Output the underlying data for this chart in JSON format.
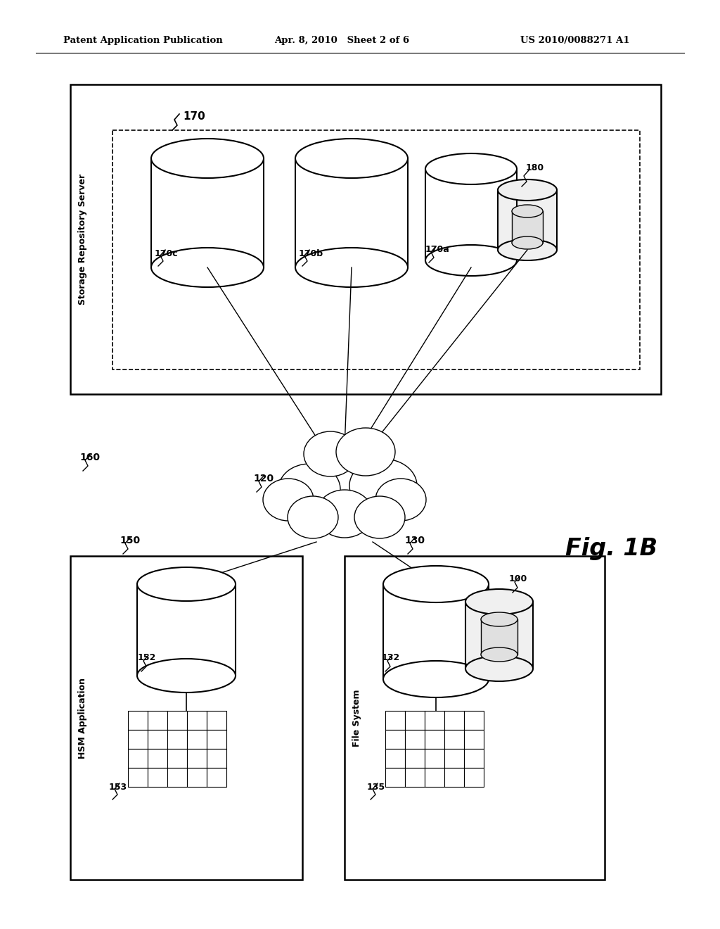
{
  "bg_color": "#ffffff",
  "header_left": "Patent Application Publication",
  "header_mid": "Apr. 8, 2010   Sheet 2 of 6",
  "header_right": "US 2010/0088271 A1",
  "fig_label": "Fig. 1B"
}
